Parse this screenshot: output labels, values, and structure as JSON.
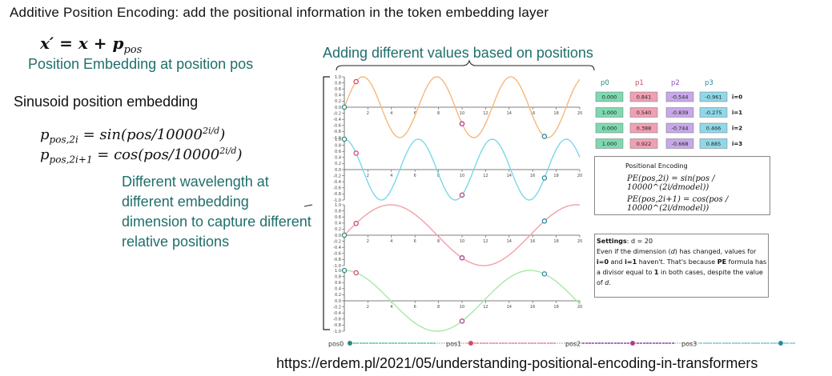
{
  "title": "Additive Position Encoding: add the positional information in the token embedding layer",
  "formula_main": "x′ = x + p",
  "formula_main_sub": "pos",
  "position_embedding_label": "Position Embedding at position pos",
  "adding_label": "Adding different values based on positions",
  "sinusoid_label": "Sinusoid position embedding",
  "formula_even": "p",
  "formula_even_sub": "pos,2i",
  "formula_even_rhs": " = sin(pos/10000",
  "formula_even_sup": "2i/d",
  "formula_odd": "p",
  "formula_odd_sub": "pos,2i+1",
  "formula_odd_rhs": " = cos(pos/10000",
  "formula_odd_sup": "2i/d",
  "wavelength_note": "Different wavelength at different embedding dimension to capture different relative positions",
  "url": "https://erdem.pl/2021/05/understanding-positional-encoding-in-transformers",
  "columns": [
    "p0",
    "p1",
    "p2",
    "p3"
  ],
  "rows": [
    {
      "label": "i=0",
      "values": [
        "0.000",
        "0.841",
        "-0.544",
        "-0.961"
      ]
    },
    {
      "label": "i=1",
      "values": [
        "1.000",
        "0.540",
        "-0.839",
        "-0.275"
      ]
    },
    {
      "label": "i=2",
      "values": [
        "0.000",
        "0.388",
        "-0.744",
        "0.466"
      ]
    },
    {
      "label": "i=3",
      "values": [
        "1.000",
        "0.922",
        "-0.668",
        "0.885"
      ]
    }
  ],
  "column_colors": [
    "#7ed9b0",
    "#f0a0b4",
    "#c7a8e8",
    "#8fd8e8"
  ],
  "pe_box": {
    "title": "Positional Encoding",
    "eq1": "PE(pos,2i) = sin(pos / 10000^(2i/dmodel))",
    "eq2": "PE(pos,2i+1) = cos(pos / 10000^(2i/dmodel))"
  },
  "settings": {
    "label": "Settings",
    "value": ": d = 20",
    "text1": "Even if the dimension (",
    "d": "d",
    "text2": ") has changed, values for ",
    "i0": "i=0",
    "text3": " and ",
    "i1": "i=1",
    "text4": " haven't. That's because ",
    "pe": "PE",
    "text5": " formula has a divisor equal to ",
    "one": "1",
    "text6": " in both cases, despite the value of ",
    "d2": "d",
    "text7": "."
  },
  "slider_labels": [
    "pos0",
    "pos1",
    "pos2",
    "pos3"
  ],
  "slider_positions": [
    0,
    1,
    10,
    17
  ],
  "chart_data": {
    "type": "line",
    "xlim": [
      0,
      20
    ],
    "ylim": [
      -1.0,
      1.0
    ],
    "x_ticks": [
      2,
      4,
      6,
      8,
      10,
      12,
      14,
      16,
      18,
      20
    ],
    "y_ticks": [
      "1.0",
      "0.8",
      "0.6",
      "0.4",
      "0.2",
      "0.0",
      "-0.2",
      "-0.4",
      "-0.6",
      "-0.8",
      "-1.0"
    ],
    "series": [
      {
        "func": "sin",
        "freq": 1.0,
        "color": "#f5b87a"
      },
      {
        "func": "cos",
        "freq": 1.0,
        "color": "#7ad8e8"
      },
      {
        "func": "sin",
        "freq": 0.3981,
        "color": "#f0a0a8"
      },
      {
        "func": "cos",
        "freq": 0.3981,
        "color": "#a8e8a8"
      }
    ],
    "marker_positions": [
      0,
      1,
      10,
      17
    ],
    "marker_colors": [
      "#2a8a7a",
      "#d04a6a",
      "#b03a90",
      "#2a8aa0"
    ]
  }
}
